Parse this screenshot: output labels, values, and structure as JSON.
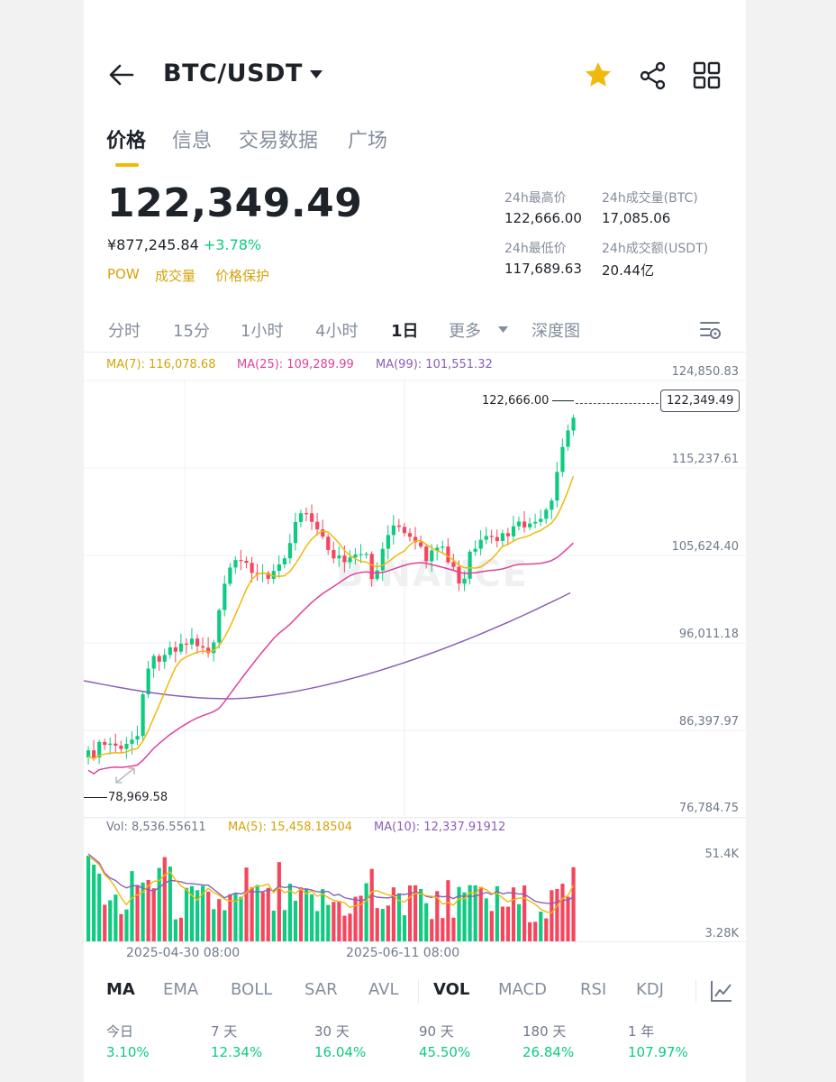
{
  "header": {
    "title": "BTC/USDT"
  },
  "tabs": [
    {
      "label": "价格"
    },
    {
      "label": "信息"
    },
    {
      "label": "交易数据"
    },
    {
      "label": "广场"
    }
  ],
  "price": {
    "last": "122,349.49",
    "cny": "¥877,245.84",
    "change_pct": "+3.78%"
  },
  "tags": [
    "POW",
    "成交量",
    "价格保护"
  ],
  "stats": {
    "high_label": "24h最高价",
    "high_value": "122,666.00",
    "vol_btc_label": "24h成交量(BTC)",
    "vol_btc_value": "17,085.06",
    "low_label": "24h最低价",
    "low_value": "117,689.63",
    "vol_usdt_label": "24h成交额(USDT)",
    "vol_usdt_value": "20.44亿"
  },
  "intervals": [
    {
      "label": "分时"
    },
    {
      "label": "15分"
    },
    {
      "label": "1小时"
    },
    {
      "label": "4小时"
    },
    {
      "label": "1日"
    },
    {
      "label": "更多"
    },
    {
      "label": "深度图"
    }
  ],
  "ma_legend": {
    "ma7": "MA(7): 116,078.68",
    "ma25": "MA(25): 109,289.99",
    "ma99": "MA(99): 101,551.32"
  },
  "chart": {
    "y_ticks": [
      "124,850.83",
      "115,237.61",
      "105,624.40",
      "96,011.18",
      "86,397.97",
      "76,784.75"
    ],
    "high_marker": "122,666.00",
    "low_marker": "78,969.58",
    "current_marker": "122,349.49",
    "watermark": "BINANCE"
  },
  "volume": {
    "vol": "Vol: 8,536.55611",
    "ma5": "MA(5): 15,458.18504",
    "ma10": "MA(10): 12,337.91912",
    "y_ticks": [
      "51.4K",
      "3.28K"
    ],
    "x_ticks": [
      "2025-04-30 08:00",
      "2025-06-11 08:00"
    ]
  },
  "indicators": [
    {
      "label": "MA"
    },
    {
      "label": "EMA"
    },
    {
      "label": "BOLL"
    },
    {
      "label": "SAR"
    },
    {
      "label": "AVL"
    },
    {
      "label": "VOL"
    },
    {
      "label": "MACD"
    },
    {
      "label": "RSI"
    },
    {
      "label": "KDJ"
    }
  ],
  "performance": [
    {
      "label": "今日",
      "value": "3.10%"
    },
    {
      "label": "7 天",
      "value": "12.34%"
    },
    {
      "label": "30 天",
      "value": "16.04%"
    },
    {
      "label": "90 天",
      "value": "45.50%"
    },
    {
      "label": "180 天",
      "value": "26.84%"
    },
    {
      "label": "1 年",
      "value": "107.97%"
    }
  ],
  "colors": {
    "up": "#0ecb81",
    "down": "#f6465d",
    "accent": "#f0b90b",
    "ma7": "#f0b90b",
    "ma25": "#e0429b",
    "ma99": "#8a5fb8"
  },
  "icons": {
    "back": "arrow-left-icon",
    "dropdown": "caret-down-icon",
    "favorite": "star-icon",
    "share": "share-icon",
    "grid": "grid-icon",
    "settings": "chart-settings-icon",
    "expand": "expand-icon",
    "indicator": "indicator-chart-icon"
  },
  "chart_data": {
    "type": "candlestick",
    "title": "",
    "xlabel": "",
    "ylabel": "",
    "ylim": [
      76784.75,
      124850.83
    ],
    "series": [
      {
        "name": "MA(7)",
        "values": [
          116078.68
        ]
      },
      {
        "name": "MA(25)",
        "values": [
          109289.99
        ]
      },
      {
        "name": "MA(99)",
        "values": [
          101551.32
        ]
      }
    ],
    "high": 122666.0,
    "low": 78969.58,
    "last": 122349.49,
    "volume_ylim": [
      3280,
      51400
    ],
    "grid": true
  }
}
